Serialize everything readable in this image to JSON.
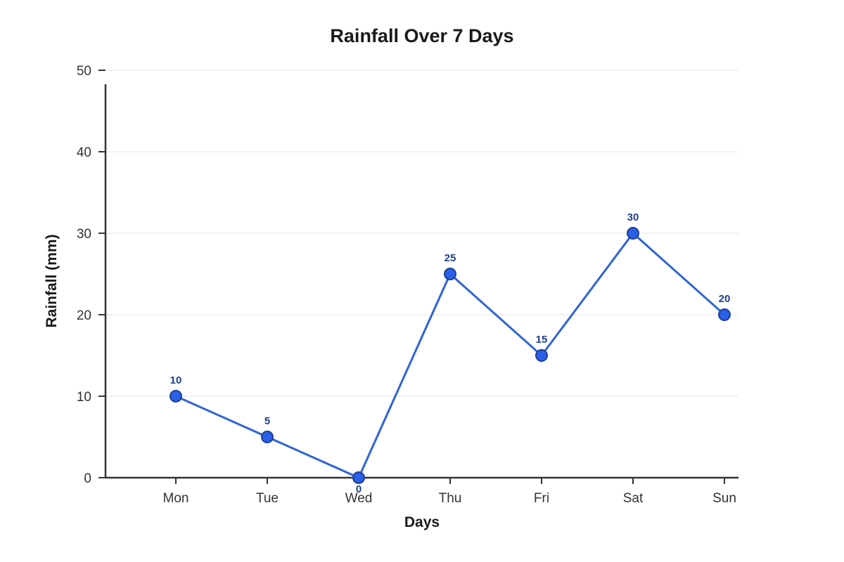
{
  "chart_data": {
    "type": "line",
    "title": "Rainfall Over 7 Days",
    "xlabel": "Days",
    "ylabel": "Rainfall (mm)",
    "categories": [
      "Mon",
      "Tue",
      "Wed",
      "Thu",
      "Fri",
      "Sat",
      "Sun"
    ],
    "series": [
      {
        "values": [
          10,
          5,
          0,
          25,
          15,
          30,
          20
        ],
        "labels": [
          "10",
          "5",
          "0",
          "25",
          "15",
          "30",
          "20"
        ],
        "color": "#2f64d6",
        "point_fill": "#2a5fe8",
        "point_stroke": "#1f3f8f"
      }
    ],
    "ylim": [
      0,
      50
    ],
    "yticks": [
      0,
      10,
      20,
      30,
      40,
      50
    ],
    "grid": true,
    "legend": "none"
  }
}
